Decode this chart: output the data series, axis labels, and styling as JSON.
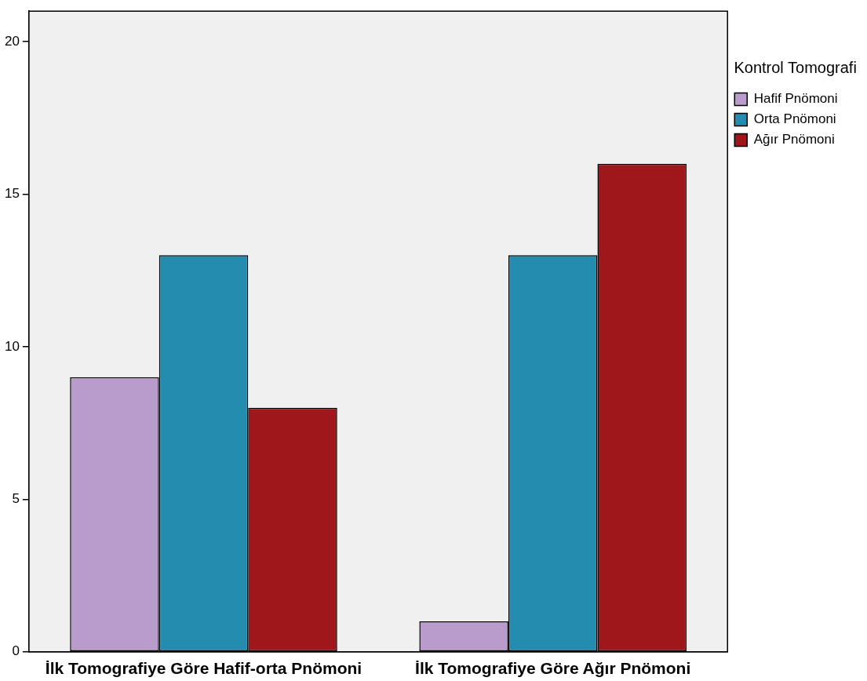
{
  "chart_data": {
    "type": "bar",
    "legend_title": "Kontrol Tomografi",
    "categories": [
      "İlk Tomografiye Göre Hafif-orta Pnömoni",
      "İlk Tomografiye Göre Ağır Pnömoni"
    ],
    "series": [
      {
        "name": "Hafif Pnömoni",
        "color": "#b99ccb",
        "values": [
          9,
          1
        ]
      },
      {
        "name": "Orta Pnömoni",
        "color": "#248caf",
        "values": [
          13,
          13
        ]
      },
      {
        "name": "Ağır Pnömoni",
        "color": "#a0171b",
        "values": [
          8,
          16
        ]
      }
    ],
    "ylim": [
      0,
      21
    ],
    "yticks": [
      0,
      5,
      10,
      15,
      20
    ],
    "grid": false,
    "legend": "right"
  }
}
